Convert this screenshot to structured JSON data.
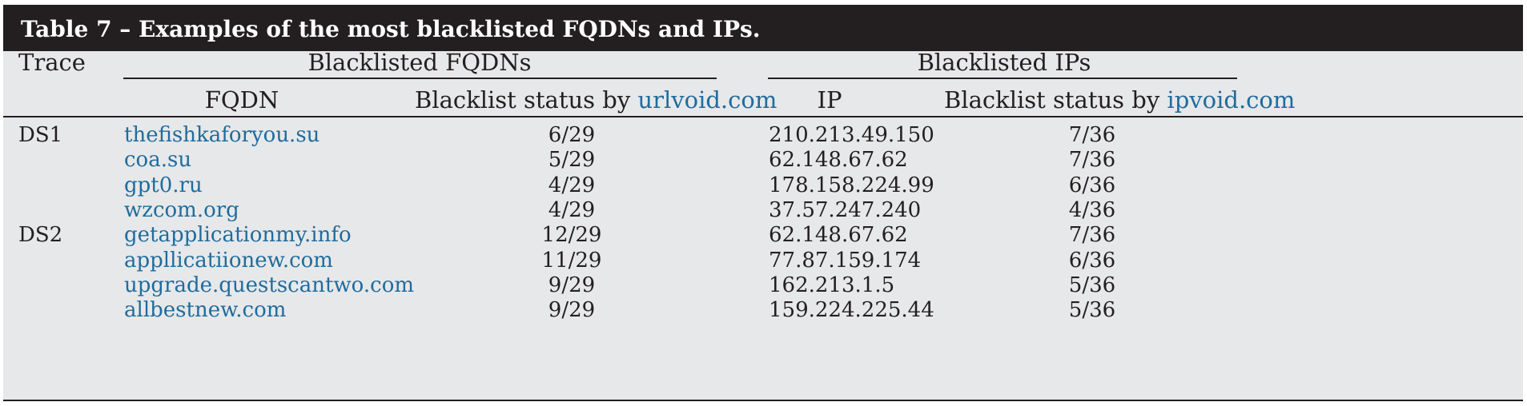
{
  "title": "Table 7 – Examples of the most blacklisted FQDNs and IPs.",
  "headers": {
    "trace": "Trace",
    "group_fqdn": "Blacklisted FQDNs",
    "group_ip": "Blacklisted IPs",
    "fqdn": "FQDN",
    "fqdn_status_prefix": "Blacklist status by ",
    "fqdn_status_link": "urlvoid.com",
    "ip": "IP",
    "ip_status_prefix": "Blacklist status by ",
    "ip_status_link": "ipvoid.com"
  },
  "rows": [
    {
      "trace": "DS1",
      "fqdn": "thefishkaforyou.su",
      "fqdn_status": "6/29",
      "ip": "210.213.49.150",
      "ip_status": "7/36"
    },
    {
      "trace": "",
      "fqdn": "coa.su",
      "fqdn_status": "5/29",
      "ip": "62.148.67.62",
      "ip_status": "7/36"
    },
    {
      "trace": "",
      "fqdn": "gpt0.ru",
      "fqdn_status": "4/29",
      "ip": "178.158.224.99",
      "ip_status": "6/36"
    },
    {
      "trace": "",
      "fqdn": "wzcom.org",
      "fqdn_status": "4/29",
      "ip": "37.57.247.240",
      "ip_status": "4/36"
    },
    {
      "trace": "DS2",
      "fqdn": "getapplicationmy.info",
      "fqdn_status": "12/29",
      "ip": "62.148.67.62",
      "ip_status": "7/36"
    },
    {
      "trace": "",
      "fqdn": "appllicatiionew.com",
      "fqdn_status": "11/29",
      "ip": "77.87.159.174",
      "ip_status": "6/36"
    },
    {
      "trace": "",
      "fqdn": "upgrade.questscantwo.com",
      "fqdn_status": "9/29",
      "ip": "162.213.1.5",
      "ip_status": "5/36"
    },
    {
      "trace": "",
      "fqdn": "allbestnew.com",
      "fqdn_status": "9/29",
      "ip": "159.224.225.44",
      "ip_status": "5/36"
    }
  ],
  "colors": {
    "title_bg": "#231f20",
    "table_bg": "#e7e8e9",
    "link": "#1f6c9e"
  }
}
